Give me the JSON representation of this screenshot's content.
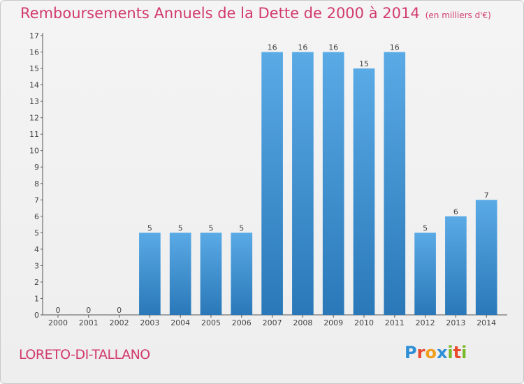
{
  "chart_data": {
    "type": "bar",
    "title": "Remboursements Annuels de la Dette de 2000 à 2014",
    "subtitle": "(en milliers d'€)",
    "categories": [
      "2000",
      "2001",
      "2002",
      "2003",
      "2004",
      "2005",
      "2006",
      "2007",
      "2008",
      "2009",
      "2010",
      "2011",
      "2012",
      "2013",
      "2014"
    ],
    "values": [
      0,
      0,
      0,
      5,
      5,
      5,
      5,
      16,
      16,
      16,
      15,
      16,
      5,
      6,
      7
    ],
    "ylim": [
      0,
      17
    ],
    "yticks": [
      0,
      1,
      2,
      3,
      4,
      5,
      6,
      7,
      8,
      9,
      10,
      11,
      12,
      13,
      14,
      15,
      16,
      17
    ],
    "grid": false,
    "legend": "none",
    "bar_color_top": "#5aaae6",
    "bar_color_bottom": "#2a78b8"
  },
  "footer": {
    "commune": "LORETO-DI-TALLANO",
    "logo_letters": [
      "P",
      "r",
      "o",
      "x",
      "i",
      "t",
      "i"
    ],
    "logo_colors": [
      "#2e8fd6",
      "#e84a2e",
      "#f0a020",
      "#2e8fd6",
      "#7ab828",
      "#e84a2e",
      "#7ab828"
    ]
  }
}
